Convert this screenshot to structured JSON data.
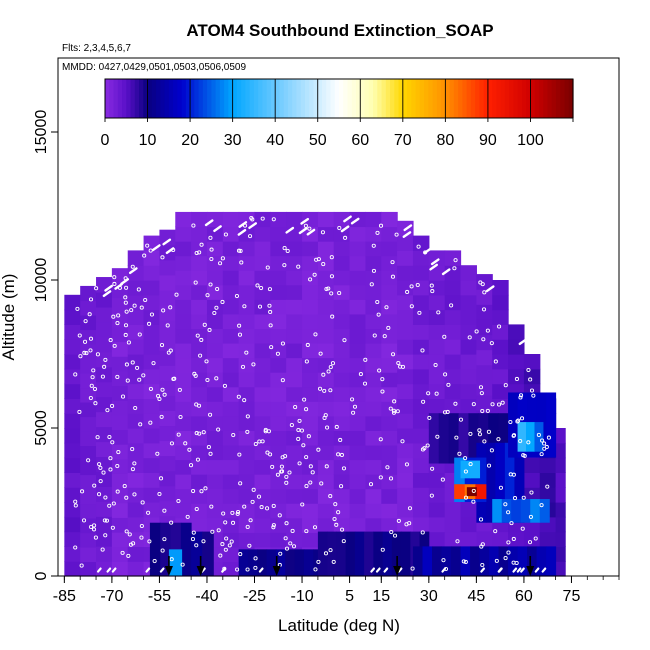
{
  "chart_data": {
    "type": "heatmap",
    "title": "ATOM4 Southbound Extinction_SOAP",
    "flights_label": "Flts: 2,3,4,5,6,7",
    "dates_label": "MMDD: 0427,0429,0501,0503,0506,0509",
    "xlabel": "Latitude (deg N)",
    "ylabel": "Altitude (m)",
    "x_ticks": [
      -85,
      -70,
      -55,
      -40,
      -25,
      -10,
      5,
      15,
      30,
      45,
      60,
      75
    ],
    "x_tick_labels": [
      "-85",
      "-70",
      "-55",
      "-40",
      "-25",
      "-10",
      "5",
      "15",
      "30",
      "45",
      "60",
      "75"
    ],
    "xlim": [
      -87,
      90
    ],
    "y_ticks": [
      0,
      5000,
      10000,
      15000
    ],
    "y_tick_labels": [
      "0",
      "5000",
      "10000",
      "15000"
    ],
    "ylim": [
      0,
      17500
    ],
    "colorbar": {
      "ticks": [
        0,
        10,
        20,
        30,
        40,
        50,
        60,
        70,
        80,
        90,
        100
      ],
      "tick_labels": [
        "0",
        "10",
        "20",
        "30",
        "40",
        "50",
        "60",
        "70",
        "80",
        "90",
        "100"
      ],
      "range": [
        0,
        110
      ],
      "stops": [
        {
          "v": 0,
          "c": "#8a2be2"
        },
        {
          "v": 5,
          "c": "#5a10c8"
        },
        {
          "v": 10,
          "c": "#0a0080"
        },
        {
          "v": 18,
          "c": "#0000cd"
        },
        {
          "v": 30,
          "c": "#00a6ff"
        },
        {
          "v": 43,
          "c": "#87d3ff"
        },
        {
          "v": 55,
          "c": "#ffffff"
        },
        {
          "v": 63,
          "c": "#ffffb0"
        },
        {
          "v": 70,
          "c": "#ffd700"
        },
        {
          "v": 80,
          "c": "#ff9000"
        },
        {
          "v": 90,
          "c": "#ff2000"
        },
        {
          "v": 100,
          "c": "#d00000"
        },
        {
          "v": 110,
          "c": "#7a0000"
        }
      ]
    },
    "field": {
      "background_value": 2,
      "profiles": [
        {
          "lat_range": [
            -85,
            -80
          ],
          "alt_range": [
            0,
            9500
          ],
          "value": 4
        },
        {
          "lat_range": [
            -80,
            -75
          ],
          "alt_range": [
            0,
            9800
          ],
          "value": 3
        },
        {
          "lat_range": [
            -75,
            -70
          ],
          "alt_range": [
            0,
            10100
          ],
          "value": 3
        },
        {
          "lat_range": [
            -70,
            -65
          ],
          "alt_range": [
            0,
            10400
          ],
          "value": 2
        },
        {
          "lat_range": [
            -65,
            -60
          ],
          "alt_range": [
            0,
            11000
          ],
          "value": 2
        },
        {
          "lat_range": [
            -60,
            -55
          ],
          "alt_range": [
            0,
            11500
          ],
          "value": 2
        },
        {
          "lat_range": [
            -55,
            -50
          ],
          "alt_range": [
            0,
            11700
          ],
          "value": 2
        },
        {
          "lat_range": [
            -50,
            -45
          ],
          "alt_range": [
            0,
            12300
          ],
          "value": 2
        },
        {
          "lat_range": [
            -45,
            -40
          ],
          "alt_range": [
            0,
            12300
          ],
          "value": 2
        },
        {
          "lat_range": [
            -40,
            -35
          ],
          "alt_range": [
            0,
            12300
          ],
          "value": 2
        },
        {
          "lat_range": [
            -35,
            -30
          ],
          "alt_range": [
            0,
            12300
          ],
          "value": 2
        },
        {
          "lat_range": [
            -30,
            -25
          ],
          "alt_range": [
            0,
            12300
          ],
          "value": 2
        },
        {
          "lat_range": [
            -25,
            -20
          ],
          "alt_range": [
            0,
            12300
          ],
          "value": 2
        },
        {
          "lat_range": [
            -20,
            -15
          ],
          "alt_range": [
            0,
            12300
          ],
          "value": 2
        },
        {
          "lat_range": [
            -15,
            -10
          ],
          "alt_range": [
            0,
            12300
          ],
          "value": 2
        },
        {
          "lat_range": [
            -10,
            -5
          ],
          "alt_range": [
            0,
            12300
          ],
          "value": 2
        },
        {
          "lat_range": [
            -5,
            0
          ],
          "alt_range": [
            0,
            12300
          ],
          "value": 2
        },
        {
          "lat_range": [
            0,
            5
          ],
          "alt_range": [
            0,
            12300
          ],
          "value": 2
        },
        {
          "lat_range": [
            5,
            10
          ],
          "alt_range": [
            0,
            12300
          ],
          "value": 2
        },
        {
          "lat_range": [
            10,
            15
          ],
          "alt_range": [
            0,
            12300
          ],
          "value": 2
        },
        {
          "lat_range": [
            15,
            20
          ],
          "alt_range": [
            0,
            12300
          ],
          "value": 2
        },
        {
          "lat_range": [
            20,
            25
          ],
          "alt_range": [
            0,
            12000
          ],
          "value": 2
        },
        {
          "lat_range": [
            25,
            30
          ],
          "alt_range": [
            0,
            11500
          ],
          "value": 3
        },
        {
          "lat_range": [
            30,
            35
          ],
          "alt_range": [
            0,
            11000
          ],
          "value": 3
        },
        {
          "lat_range": [
            35,
            40
          ],
          "alt_range": [
            0,
            11000
          ],
          "value": 3
        },
        {
          "lat_range": [
            40,
            45
          ],
          "alt_range": [
            0,
            10500
          ],
          "value": 3
        },
        {
          "lat_range": [
            45,
            50
          ],
          "alt_range": [
            0,
            10200
          ],
          "value": 3
        },
        {
          "lat_range": [
            50,
            55
          ],
          "alt_range": [
            0,
            10000
          ],
          "value": 4
        },
        {
          "lat_range": [
            55,
            60
          ],
          "alt_range": [
            0,
            8500
          ],
          "value": 5
        },
        {
          "lat_range": [
            60,
            65
          ],
          "alt_range": [
            0,
            7500
          ],
          "value": 6
        },
        {
          "lat_range": [
            65,
            70
          ],
          "alt_range": [
            0,
            6000
          ],
          "value": 7
        },
        {
          "lat_range": [
            70,
            73
          ],
          "alt_range": [
            0,
            5000
          ],
          "value": 6
        }
      ],
      "features": [
        {
          "lat_range": [
            -58,
            -45
          ],
          "alt_range": [
            0,
            1800
          ],
          "value": 10
        },
        {
          "lat_range": [
            -52,
            -48
          ],
          "alt_range": [
            0,
            900
          ],
          "value": 32
        },
        {
          "lat_range": [
            -45,
            -38
          ],
          "alt_range": [
            0,
            1500
          ],
          "value": 11
        },
        {
          "lat_range": [
            -30,
            20
          ],
          "alt_range": [
            0,
            900
          ],
          "value": 12
        },
        {
          "lat_range": [
            -5,
            30
          ],
          "alt_range": [
            0,
            1500
          ],
          "value": 10
        },
        {
          "lat_range": [
            25,
            70
          ],
          "alt_range": [
            0,
            1000
          ],
          "value": 14
        },
        {
          "lat_range": [
            30,
            55
          ],
          "alt_range": [
            3800,
            5500
          ],
          "value": 9
        },
        {
          "lat_range": [
            45,
            60
          ],
          "alt_range": [
            1800,
            4500
          ],
          "value": 18
        },
        {
          "lat_range": [
            55,
            70
          ],
          "alt_range": [
            4000,
            6200
          ],
          "value": 16
        },
        {
          "lat_range": [
            58,
            66
          ],
          "alt_range": [
            4200,
            5200
          ],
          "value": 30
        },
        {
          "lat_range": [
            50,
            68
          ],
          "alt_range": [
            1800,
            2600
          ],
          "value": 28
        },
        {
          "lat_range": [
            38,
            48
          ],
          "alt_range": [
            2500,
            4000
          ],
          "value": 25
        },
        {
          "lat_range": [
            40,
            46
          ],
          "alt_range": [
            3300,
            3900
          ],
          "value": 38
        },
        {
          "lat_range": [
            38,
            48
          ],
          "alt_range": [
            2600,
            3100
          ],
          "value": 85
        },
        {
          "lat_range": [
            42,
            45
          ],
          "alt_range": [
            2700,
            3000
          ],
          "value": 100
        }
      ]
    },
    "arrows_lat": [
      -52,
      -42,
      -18,
      20,
      62
    ],
    "track_points_count": 650
  }
}
